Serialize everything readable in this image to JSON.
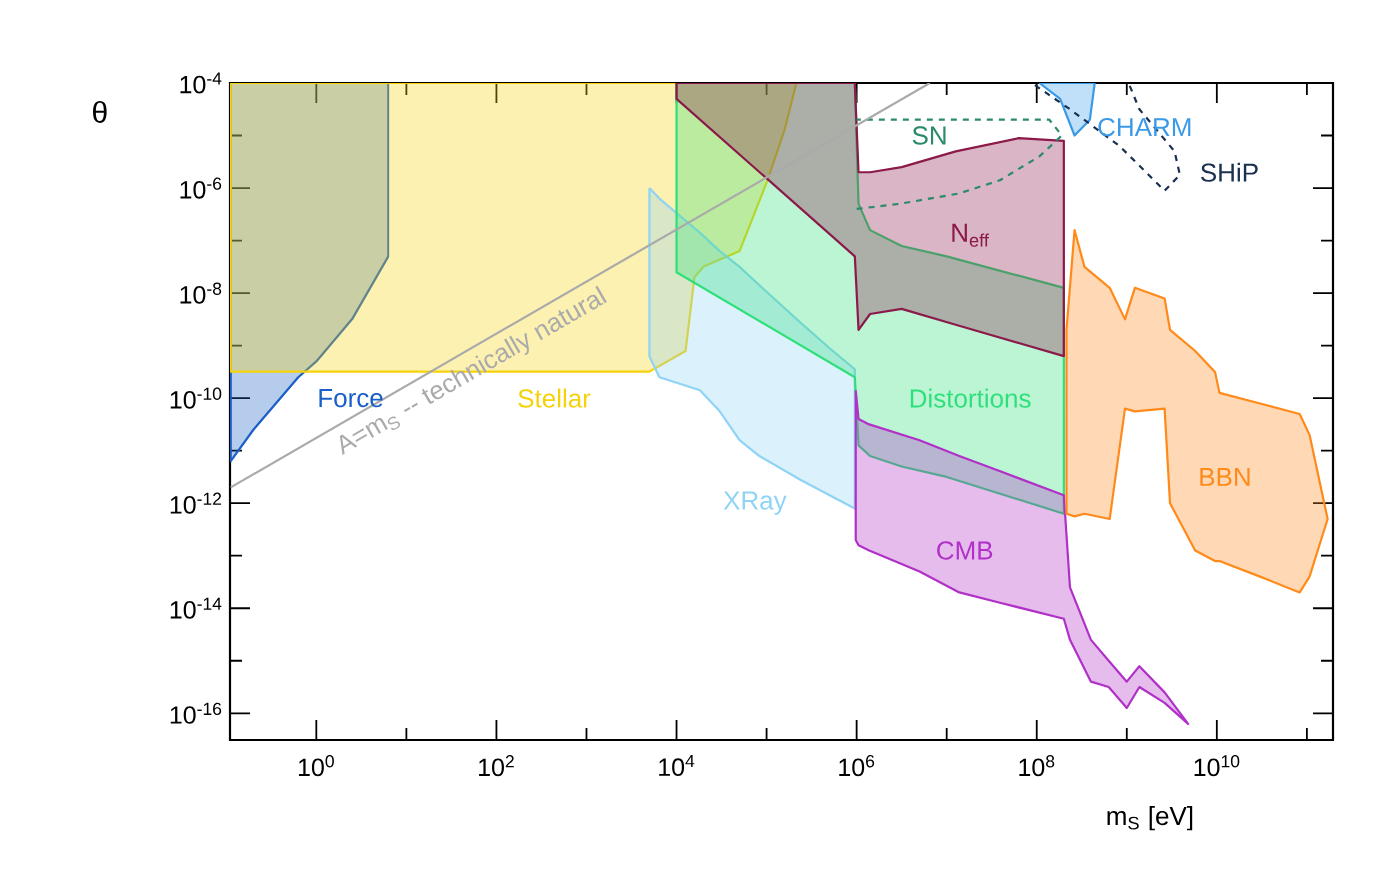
{
  "chart_data": {
    "type": "area",
    "log": "xy",
    "xlabel": "m$_{S}$ [eV]",
    "ylabel": "θ",
    "xlim": [
      0.11,
      195000000000.0
    ],
    "ylim": [
      3.1e-17,
      0.0001
    ],
    "xticks": [
      {
        "value": 1,
        "label": "10$^{0}$"
      },
      {
        "value": 10,
        "label": null
      },
      {
        "value": 100,
        "label": "10$^{2}$"
      },
      {
        "value": 1000,
        "label": null
      },
      {
        "value": 10000,
        "label": "10$^{4}$"
      },
      {
        "value": 100000,
        "label": null
      },
      {
        "value": 1000000,
        "label": "10$^{6}$"
      },
      {
        "value": 10000000,
        "label": null
      },
      {
        "value": 100000000,
        "label": "10$^{8}$"
      },
      {
        "value": 1000000000,
        "label": null
      },
      {
        "value": 10000000000,
        "label": "10$^{10}$"
      },
      {
        "value": 100000000000,
        "label": null
      }
    ],
    "yticks": [
      {
        "value": 1e-16,
        "label": "10$^{-16}$"
      },
      {
        "value": 1e-15,
        "label": null
      },
      {
        "value": 1e-14,
        "label": "10$^{-14}$"
      },
      {
        "value": 1e-13,
        "label": null
      },
      {
        "value": 1e-12,
        "label": "10$^{-12}$"
      },
      {
        "value": 1e-11,
        "label": null
      },
      {
        "value": 1e-10,
        "label": "10$^{-10}$"
      },
      {
        "value": 1e-09,
        "label": null
      },
      {
        "value": 1e-08,
        "label": "10$^{-8}$"
      },
      {
        "value": 1e-07,
        "label": null
      },
      {
        "value": 1e-06,
        "label": "10$^{-6}$"
      },
      {
        "value": 1e-05,
        "label": null
      },
      {
        "value": 0.0001,
        "label": "10$^{-4}$"
      }
    ],
    "series": [
      {
        "name": "Force",
        "color": "#1a5fc8",
        "x": [
          0.112,
          0.2,
          0.63,
          1,
          2.5,
          6.3
        ],
        "values": [
          null,
          null,
          null,
          null,
          null,
          null
        ],
        "upper": [
          0.0001,
          0.0001,
          0.0001,
          0.0001,
          0.0001,
          0.0001
        ],
        "lower": [
          6.3e-12,
          2.5e-11,
          2.5e-10,
          5e-10,
          3.2e-09,
          5e-08
        ]
      },
      {
        "name": "Stellar",
        "color": "#f5d20a",
        "x": [
          0.112,
          5000,
          12600,
          15800,
          20000,
          50100,
          100000,
          158000,
          214000
        ],
        "values": [
          null,
          null,
          null,
          null,
          null,
          null,
          null,
          null,
          null
        ],
        "upper": [
          0.0001,
          0.0001,
          0.0001,
          0.0001,
          0.0001,
          0.0001,
          0.0001,
          0.0001,
          0.0001
        ],
        "lower": [
          3.2e-10,
          3.2e-10,
          7.9e-10,
          2e-08,
          3.2e-08,
          6.3e-08,
          1.26e-06,
          1.26e-05,
          0.0001
        ]
      },
      {
        "name": "XRay",
        "color": "#8fd3f5",
        "x": [
          5000,
          6460,
          18200,
          30200,
          50100,
          83200,
          234000,
          501000,
          955000
        ],
        "values": [
          null,
          null,
          null,
          null,
          null,
          null,
          null,
          null,
          null
        ],
        "upper": [
          1e-06,
          6.3e-07,
          1.41e-07,
          6.3e-08,
          3.16e-08,
          1.41e-08,
          2.82e-09,
          8.9e-10,
          3.55e-10
        ],
        "lower": [
          6.3e-10,
          2.5e-10,
          1.41e-10,
          5.6e-11,
          1.58e-11,
          7.9e-12,
          2.82e-12,
          1.41e-12,
          7.9e-13
        ]
      },
      {
        "name": "Distortions",
        "color": "#2ee07a",
        "x": [
          10000,
          955000,
          1050000,
          1410000,
          3160000,
          10000000,
          200000000
        ],
        "values": [
          null,
          null,
          null,
          null,
          null,
          null,
          null
        ],
        "upper": [
          0.0001,
          0.0001,
          5e-07,
          1.58e-07,
          7.9e-08,
          5e-08,
          1.26e-08
        ],
        "lower": [
          2.5e-08,
          2.5e-10,
          1.26e-11,
          7.9e-12,
          5e-12,
          3.16e-12,
          6.3e-13
        ]
      },
      {
        "name": "N$_{eff}$",
        "color": "#8b1a4a",
        "x": [
          10000,
          955000,
          1050000,
          1410000,
          3160000,
          12600000,
          63000000,
          200000000
        ],
        "values": [
          null,
          null,
          null,
          null,
          null,
          null,
          null,
          null
        ],
        "upper": [
          0.0001,
          0.0001,
          2e-06,
          2e-06,
          2.5e-06,
          5e-06,
          8.9e-06,
          7.9e-06
        ],
        "lower": [
          5e-05,
          5e-08,
          2e-09,
          4e-09,
          5e-09,
          2.5e-09,
          1.12e-09,
          6.3e-10
        ]
      },
      {
        "name": "CMB",
        "color": "#b030c8",
        "x": [
          977000,
          1050000,
          1380000,
          5000000,
          13800000,
          40000000,
          200000000,
          234000000,
          400000000,
          630000000,
          1000000000,
          1380000000,
          2630000000,
          4800000000
        ],
        "values": [
          null,
          null,
          null,
          null,
          null,
          null,
          null,
          null,
          null,
          null,
          null,
          null,
          null,
          null
        ],
        "upper": [
          1.41e-10,
          4e-11,
          3.16e-11,
          1.58e-11,
          7.9e-12,
          4e-12,
          1.41e-12,
          2.5e-14,
          2.5e-15,
          1e-15,
          4e-16,
          7.9e-16,
          2.5e-16,
          6.3e-17
        ],
        "lower": [
          2e-13,
          1.58e-13,
          1.26e-13,
          5e-14,
          2e-14,
          1.26e-14,
          6.3e-15,
          2.5e-15,
          4e-16,
          3.16e-16,
          1.26e-16,
          3.16e-16,
          1.58e-16,
          6.3e-17
        ]
      },
      {
        "name": "BBN",
        "color": "#ff8a1a",
        "x": [
          214000000,
          263000000,
          339000000,
          646000000,
          955000000,
          1230000000,
          2630000000,
          3020000000,
          5750000000,
          9550000000,
          10700000000,
          30200000000,
          83200000000,
          107000000000,
          170000000000
        ],
        "values": [
          null,
          null,
          null,
          null,
          null,
          null,
          null,
          null,
          null,
          null,
          null,
          null,
          null,
          null,
          null
        ],
        "upper": [
          2e-09,
          1.58e-07,
          3.16e-08,
          1.26e-08,
          3.16e-09,
          1.26e-08,
          7.9e-09,
          2e-09,
          7.9e-10,
          3.16e-10,
          1.26e-10,
          7.9e-11,
          5e-11,
          2e-11,
          5e-13
        ],
        "lower": [
          6.3e-13,
          5.6e-13,
          6.3e-13,
          5e-13,
          6.3e-11,
          5.6e-11,
          6.3e-11,
          1e-12,
          1.26e-13,
          7.9e-14,
          7.9e-14,
          4e-14,
          2e-14,
          4e-14,
          5e-13
        ]
      },
      {
        "name": "CHARM",
        "color": "#3a9ae8",
        "x": [
          107000000,
          182000000,
          263000000,
          389000000,
          437000000
        ],
        "values": [
          null,
          null,
          null,
          null,
          null
        ],
        "upper": [
          0.0001,
          0.0001,
          0.0001,
          0.0001,
          0.0001
        ],
        "lower": [
          0.0001,
          5e-05,
          1e-05,
          2e-05,
          8.9e-05
        ]
      },
      {
        "name": "SHiP",
        "type": "line",
        "line_style": "dashed",
        "color": "#1a3050",
        "x": [
          95500000,
          234000000,
          832000000,
          2630000000,
          3890000000,
          3390000000,
          1380000000,
          1070000000
        ],
        "values": [
          9.1e-05,
          3.16e-05,
          6.3e-06,
          8.9e-07,
          1.78e-06,
          5e-06,
          3.16e-05,
          9.1e-05
        ]
      },
      {
        "name": "SN",
        "type": "line",
        "line_style": "dashed",
        "color": "#2a8a6a",
        "x": [
          1000000,
          3000000,
          13800000,
          39000000,
          107000000,
          190000000,
          138000000,
          1000000
        ],
        "values": [
          4e-07,
          5e-07,
          7.9e-07,
          1.41e-06,
          4e-06,
          1e-05,
          2e-05,
          2e-05
        ]
      },
      {
        "name": "A=m$_{S}$ -- technically natural",
        "type": "line",
        "line_style": "solid",
        "color": "#aaaaaa",
        "x": [
          0.112,
          6500000
        ],
        "values": [
          2e-12,
          0.0001
        ]
      }
    ]
  }
}
